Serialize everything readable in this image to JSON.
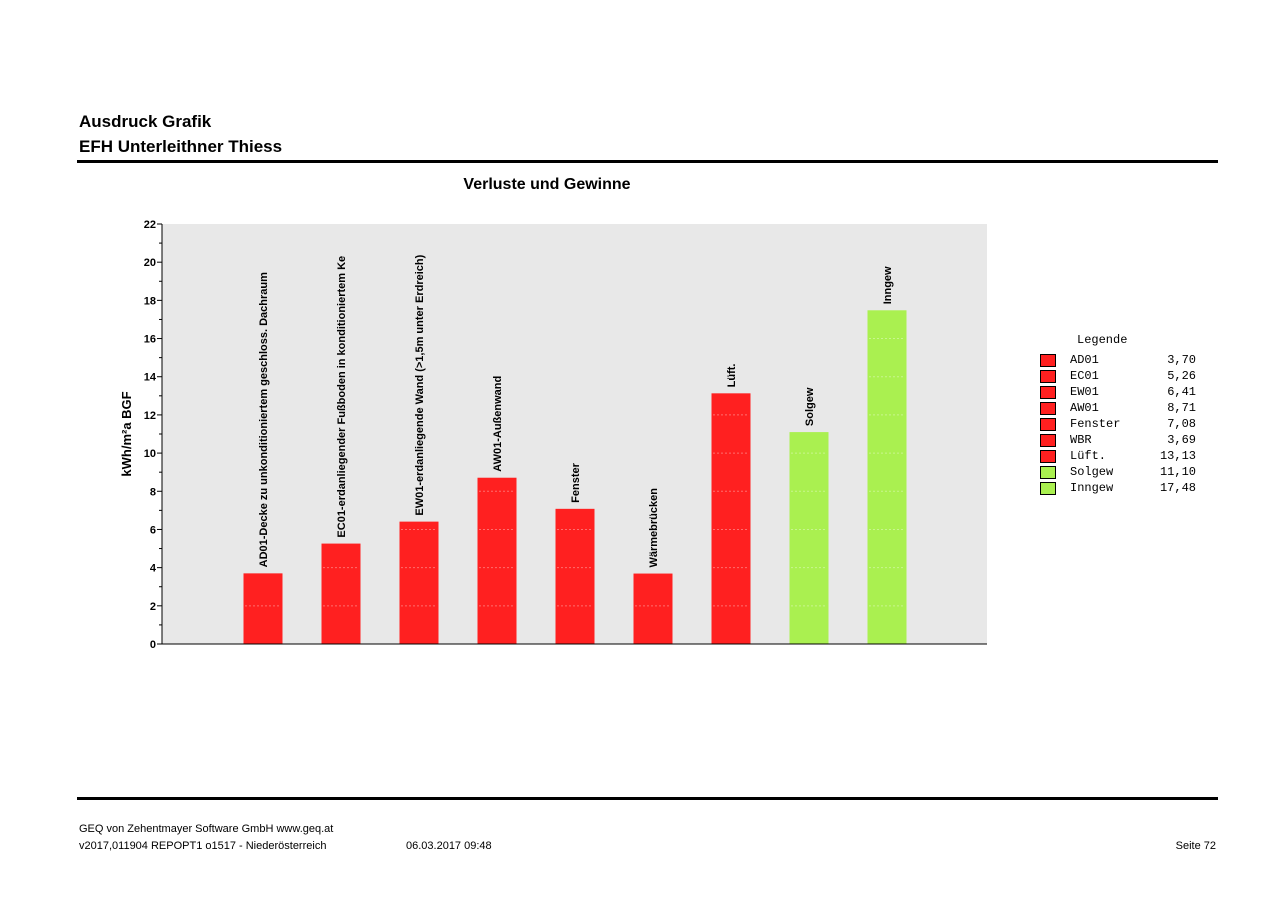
{
  "header": {
    "line1": "Ausdruck Grafik",
    "line2": "EFH Unterleithner Thiess"
  },
  "footer": {
    "company": "GEQ von Zehentmayer Software GmbH www.geq.at",
    "version": "v2017,011904 REPOPT1 o1517 - Niederösterreich",
    "datetime": "06.03.2017 09:48",
    "page": "Seite 72"
  },
  "colors": {
    "loss": "#ff2020",
    "gain": "#aaf050",
    "plot_bg": "#e8e8e8"
  },
  "legend": {
    "title": "Legende",
    "items": [
      {
        "name": "AD01",
        "value": "3,70",
        "color": "#ff2020"
      },
      {
        "name": "EC01",
        "value": "5,26",
        "color": "#ff2020"
      },
      {
        "name": "EW01",
        "value": "6,41",
        "color": "#ff2020"
      },
      {
        "name": "AW01",
        "value": "8,71",
        "color": "#ff2020"
      },
      {
        "name": "Fenster",
        "value": "7,08",
        "color": "#ff2020"
      },
      {
        "name": "WBR",
        "value": "3,69",
        "color": "#ff2020"
      },
      {
        "name": "Lüft.",
        "value": "13,13",
        "color": "#ff2020"
      },
      {
        "name": "Solgew",
        "value": "11,10",
        "color": "#aaf050"
      },
      {
        "name": "Inngew",
        "value": "17,48",
        "color": "#aaf050"
      }
    ]
  },
  "chart_data": {
    "type": "bar",
    "title": "Verluste und Gewinne",
    "xlabel": "",
    "ylabel": "kWh/m²a BGF",
    "ylim": [
      0,
      22
    ],
    "yticks": [
      "0",
      "2",
      "4",
      "6",
      "8",
      "10",
      "12",
      "14",
      "16",
      "18",
      "20",
      "22"
    ],
    "grid": false,
    "legend_position": "right",
    "categories": [
      "AD01-Decke zu unkonditioniertem geschloss. Dachraum",
      "EC01-erdanliegender Fußboden in konditioniertem Ke",
      "EW01-erdanliegende Wand (>1,5m unter Erdreich)",
      "AW01-Außenwand",
      "Fenster",
      "Wärmebrücken",
      "Lüft.",
      "Solgew",
      "Inngew"
    ],
    "values": [
      3.7,
      5.26,
      6.41,
      8.71,
      7.08,
      3.69,
      13.13,
      11.1,
      17.48
    ],
    "kind": [
      "loss",
      "loss",
      "loss",
      "loss",
      "loss",
      "loss",
      "loss",
      "gain",
      "gain"
    ]
  }
}
